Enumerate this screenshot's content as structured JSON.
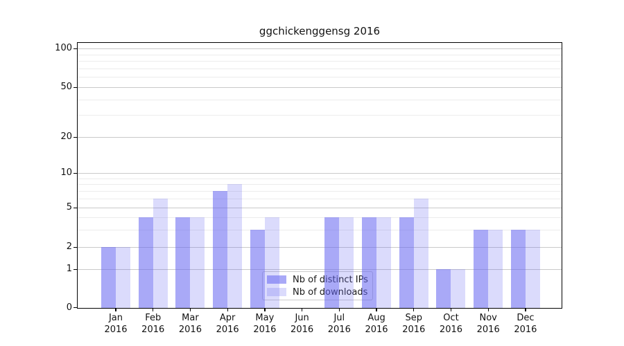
{
  "chart_data": {
    "type": "bar",
    "title": "ggchickenggensg 2016",
    "categories": [
      "Jan",
      "Feb",
      "Mar",
      "Apr",
      "May",
      "Jun",
      "Jul",
      "Aug",
      "Sep",
      "Oct",
      "Nov",
      "Dec"
    ],
    "x_tick_second_line": "2016",
    "series": [
      {
        "name": "Nb of distinct IPs",
        "values": [
          2,
          4,
          4,
          7,
          3,
          0,
          4,
          4,
          4,
          1,
          3,
          3
        ],
        "color": "rgba(99,99,240,0.55)"
      },
      {
        "name": "Nb of downloads",
        "values": [
          2,
          6,
          4,
          8,
          4,
          0,
          4,
          4,
          6,
          1,
          3,
          3
        ],
        "color": "rgba(99,99,240,0.23)"
      }
    ],
    "yaxis": {
      "tick_labels": [
        "0",
        "1",
        "2",
        "5",
        "10",
        "20",
        "50",
        "100"
      ],
      "ticks": [
        0,
        1,
        2,
        5,
        10,
        20,
        50,
        100
      ],
      "minor_gridlines": [
        3,
        4,
        6,
        7,
        8,
        9,
        30,
        40,
        60,
        70,
        80,
        90
      ],
      "scale": "pseudo-log",
      "ylim": [
        0,
        110
      ]
    },
    "xlabel": "",
    "ylabel": "",
    "grid": true,
    "legend_position": "lower center"
  },
  "colors": {
    "bar_distinct_ips": "rgba(99,99,240,0.55)",
    "bar_downloads": "rgba(99,99,240,0.23)",
    "major_gridline": "#c9c9c9",
    "minor_gridline": "#ececec",
    "axis_frame": "#000000",
    "text": "#111111",
    "legend_border": "#cccccc"
  }
}
